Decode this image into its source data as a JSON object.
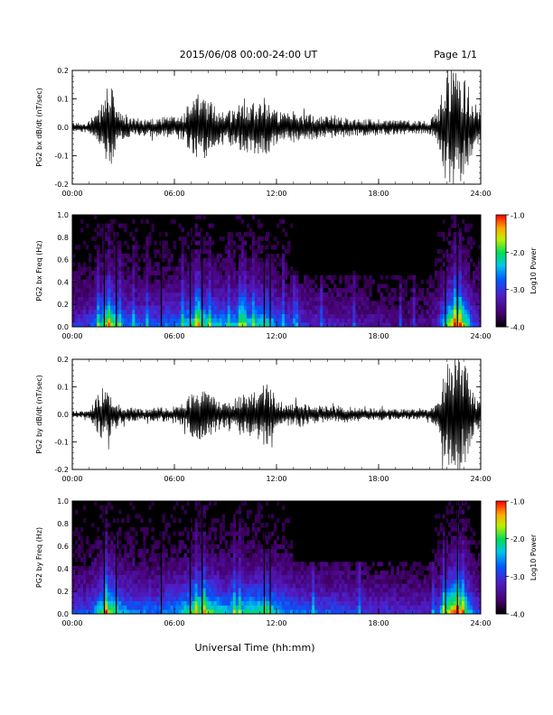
{
  "header": {
    "title": "2015/06/08  00:00-24:00 UT",
    "page": "Page 1/1"
  },
  "footer": {
    "xlabel": "Universal Time (hh:mm)"
  },
  "chart_data": [
    {
      "type": "line",
      "ylabel": "PG2 bx dB/dt (nT/sec)",
      "ylim": [
        -0.2,
        0.2
      ],
      "yticks": [
        "0.2",
        "0.1",
        "0.0",
        "-0.1",
        "-0.2"
      ],
      "xlim": [
        0,
        24
      ],
      "xticks": [
        "00:00",
        "06:00",
        "12:00",
        "18:00",
        "24:00"
      ],
      "envelope": {
        "x_hours": [
          0,
          1,
          1.5,
          1.9,
          2.1,
          2.4,
          2.7,
          3,
          3.5,
          4,
          5,
          6,
          6.5,
          7,
          7.5,
          8,
          8.5,
          9,
          9.5,
          10,
          10.5,
          11,
          11.4,
          11.7,
          12,
          12.5,
          13,
          14,
          15,
          16,
          17,
          18,
          19,
          20,
          21,
          21.5,
          21.8,
          22.1,
          22.5,
          22.8,
          23.2,
          23.6,
          24
        ],
        "amplitude": [
          0.015,
          0.02,
          0.05,
          0.11,
          0.16,
          0.13,
          0.06,
          0.04,
          0.035,
          0.03,
          0.035,
          0.04,
          0.05,
          0.1,
          0.12,
          0.1,
          0.07,
          0.06,
          0.07,
          0.09,
          0.1,
          0.1,
          0.11,
          0.08,
          0.06,
          0.05,
          0.05,
          0.045,
          0.04,
          0.035,
          0.03,
          0.03,
          0.028,
          0.025,
          0.025,
          0.06,
          0.16,
          0.22,
          0.22,
          0.2,
          0.16,
          0.08,
          0.05
        ]
      }
    },
    {
      "type": "heatmap",
      "ylabel": "PG2 bx Freq (Hz)",
      "ylim": [
        0,
        1.0
      ],
      "yticks": [
        "1.0",
        "0.8",
        "0.6",
        "0.4",
        "0.2",
        "0.0"
      ],
      "xlim": [
        0,
        24
      ],
      "xticks": [
        "00:00",
        "06:00",
        "12:00",
        "18:00",
        "24:00"
      ],
      "colorbar": {
        "label": "Log10 Power",
        "range": [
          -4.0,
          -1.0
        ],
        "ticks": [
          "-1.0",
          "-2.0",
          "-3.0",
          "-4.0"
        ]
      },
      "activity": {
        "x_hours": [
          0,
          1,
          1.5,
          2,
          2.4,
          3,
          4,
          5,
          6,
          7,
          7.5,
          8,
          9,
          10,
          11,
          11.5,
          12,
          13,
          14,
          15,
          16,
          17,
          18,
          19,
          20,
          21,
          21.5,
          22,
          22.5,
          23,
          23.5,
          24
        ],
        "level": [
          0.3,
          0.35,
          0.5,
          0.75,
          0.7,
          0.45,
          0.4,
          0.4,
          0.45,
          0.6,
          0.7,
          0.6,
          0.5,
          0.55,
          0.6,
          0.65,
          0.45,
          0.35,
          0.3,
          0.28,
          0.25,
          0.22,
          0.2,
          0.18,
          0.17,
          0.2,
          0.3,
          0.7,
          0.9,
          0.8,
          0.4,
          0.3
        ]
      }
    },
    {
      "type": "line",
      "ylabel": "PG2 by dB/dt (nT/sec)",
      "ylim": [
        -0.2,
        0.2
      ],
      "yticks": [
        "0.2",
        "0.1",
        "0.0",
        "-0.1",
        "-0.2"
      ],
      "xlim": [
        0,
        24
      ],
      "xticks": [
        "00:00",
        "06:00",
        "12:00",
        "18:00",
        "24:00"
      ],
      "envelope": {
        "x_hours": [
          0,
          1,
          1.4,
          1.8,
          2.2,
          2.6,
          3,
          3.5,
          4,
          5,
          6,
          6.5,
          7,
          7.5,
          8,
          8.5,
          9,
          9.5,
          10,
          10.5,
          11,
          11.4,
          11.8,
          12.2,
          12.8,
          13.5,
          14,
          15,
          16,
          17,
          18,
          19,
          20,
          21,
          21.5,
          21.8,
          22.1,
          22.5,
          22.8,
          23.2,
          23.6,
          24
        ],
        "amplitude": [
          0.012,
          0.015,
          0.06,
          0.1,
          0.08,
          0.05,
          0.03,
          0.025,
          0.02,
          0.025,
          0.03,
          0.04,
          0.08,
          0.1,
          0.09,
          0.06,
          0.05,
          0.06,
          0.08,
          0.09,
          0.1,
          0.12,
          0.08,
          0.05,
          0.04,
          0.05,
          0.035,
          0.03,
          0.03,
          0.025,
          0.022,
          0.02,
          0.02,
          0.02,
          0.05,
          0.15,
          0.22,
          0.22,
          0.22,
          0.16,
          0.08,
          0.04
        ]
      }
    },
    {
      "type": "heatmap",
      "ylabel": "PG2 by Freq (Hz)",
      "ylim": [
        0,
        1.0
      ],
      "yticks": [
        "1.0",
        "0.8",
        "0.6",
        "0.4",
        "0.2",
        "0.0"
      ],
      "xlim": [
        0,
        24
      ],
      "xticks": [
        "00:00",
        "06:00",
        "12:00",
        "18:00",
        "24:00"
      ],
      "colorbar": {
        "label": "Log10 Power",
        "range": [
          -4.0,
          -1.0
        ],
        "ticks": [
          "-1.0",
          "-2.0",
          "-3.0",
          "-4.0"
        ]
      },
      "activity": {
        "x_hours": [
          0,
          1,
          1.5,
          2,
          2.4,
          3,
          4,
          5,
          6,
          7,
          7.5,
          8,
          9,
          10,
          11,
          11.5,
          12,
          13,
          14,
          15,
          16,
          17,
          18,
          19,
          20,
          21,
          21.5,
          22,
          22.5,
          23,
          23.5,
          24
        ],
        "level": [
          0.35,
          0.4,
          0.55,
          0.75,
          0.7,
          0.5,
          0.45,
          0.45,
          0.5,
          0.65,
          0.75,
          0.7,
          0.55,
          0.6,
          0.65,
          0.7,
          0.55,
          0.45,
          0.42,
          0.4,
          0.38,
          0.35,
          0.32,
          0.3,
          0.28,
          0.3,
          0.4,
          0.75,
          0.95,
          0.8,
          0.45,
          0.35
        ]
      }
    }
  ]
}
